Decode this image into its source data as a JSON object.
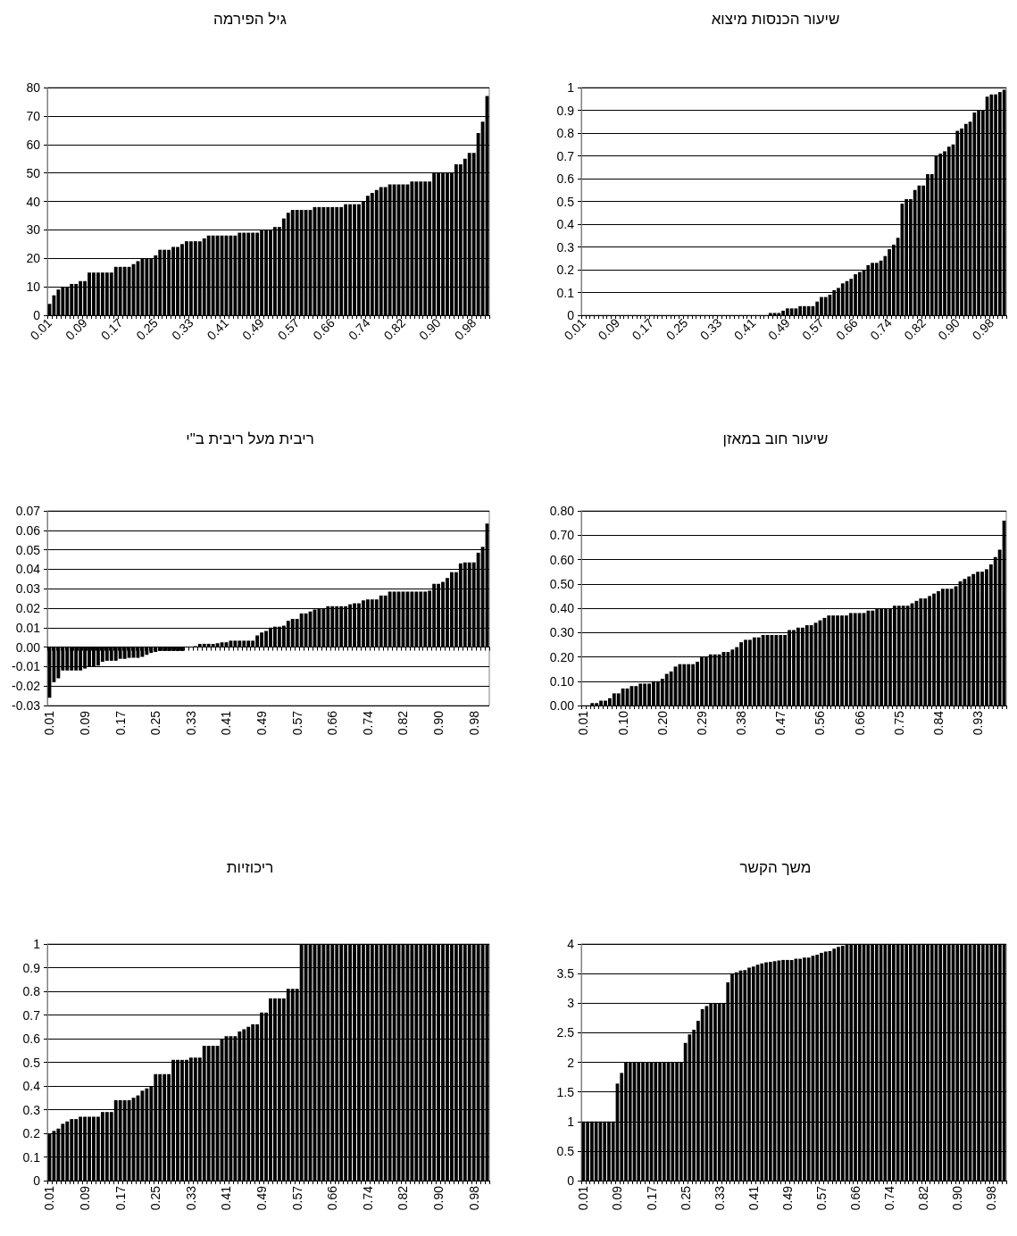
{
  "chart_data": [
    {
      "type": "bar",
      "title": "גיל הפירמה",
      "color": "#000000",
      "grid": "y",
      "ylim": [
        0,
        80
      ],
      "yticks": [
        0,
        10,
        20,
        30,
        40,
        50,
        60,
        70,
        80
      ],
      "categories": [
        "0.01",
        null,
        null,
        null,
        null,
        null,
        null,
        null,
        "0.09",
        null,
        null,
        null,
        null,
        null,
        null,
        null,
        "0.17",
        null,
        null,
        null,
        null,
        null,
        null,
        null,
        "0.25",
        null,
        null,
        null,
        null,
        null,
        null,
        null,
        "0.33",
        null,
        null,
        null,
        null,
        null,
        null,
        null,
        "0.41",
        null,
        null,
        null,
        null,
        null,
        null,
        null,
        "0.49",
        null,
        null,
        null,
        null,
        null,
        null,
        null,
        "0.57",
        null,
        null,
        null,
        null,
        null,
        null,
        null,
        "0.66",
        null,
        null,
        null,
        null,
        null,
        null,
        null,
        "0.74",
        null,
        null,
        null,
        null,
        null,
        null,
        null,
        "0.82",
        null,
        null,
        null,
        null,
        null,
        null,
        null,
        "0.90",
        null,
        null,
        null,
        null,
        null,
        null,
        null,
        "0.98",
        null,
        null,
        null
      ],
      "values": [
        4,
        7,
        9,
        10,
        10,
        11,
        11,
        12,
        12,
        15,
        15,
        15,
        15,
        15,
        15,
        17,
        17,
        17,
        17,
        18,
        19,
        20,
        20,
        20,
        21,
        23,
        23,
        23,
        24,
        24,
        25,
        26,
        26,
        26,
        26,
        27,
        28,
        28,
        28,
        28,
        28,
        28,
        28,
        29,
        29,
        29,
        29,
        29,
        30,
        30,
        30,
        31,
        31,
        34,
        36,
        37,
        37,
        37,
        37,
        37,
        38,
        38,
        38,
        38,
        38,
        38,
        38,
        39,
        39,
        39,
        39,
        40,
        42,
        43,
        44,
        45,
        45,
        46,
        46,
        46,
        46,
        46,
        47,
        47,
        47,
        47,
        47,
        50,
        50,
        50,
        50,
        50,
        53,
        53,
        55,
        57,
        57,
        64,
        68,
        77
      ]
    },
    {
      "type": "bar",
      "title": "שיעור הכנסות מיצוא",
      "color": "#000000",
      "grid": "y",
      "ylim": [
        0,
        1
      ],
      "yticks": [
        0,
        0.1,
        0.2,
        0.3,
        0.4,
        0.5,
        0.6,
        0.7,
        0.8,
        0.9,
        1
      ],
      "categories": [
        "0.01",
        null,
        null,
        null,
        null,
        null,
        null,
        null,
        "0.09",
        null,
        null,
        null,
        null,
        null,
        null,
        null,
        "0.17",
        null,
        null,
        null,
        null,
        null,
        null,
        null,
        "0.25",
        null,
        null,
        null,
        null,
        null,
        null,
        null,
        "0.33",
        null,
        null,
        null,
        null,
        null,
        null,
        null,
        "0.41",
        null,
        null,
        null,
        null,
        null,
        null,
        null,
        "0.49",
        null,
        null,
        null,
        null,
        null,
        null,
        null,
        "0.57",
        null,
        null,
        null,
        null,
        null,
        null,
        null,
        "0.66",
        null,
        null,
        null,
        null,
        null,
        null,
        null,
        "0.74",
        null,
        null,
        null,
        null,
        null,
        null,
        null,
        "0.82",
        null,
        null,
        null,
        null,
        null,
        null,
        null,
        "0.90",
        null,
        null,
        null,
        null,
        null,
        null,
        null,
        "0.98",
        null,
        null,
        null
      ],
      "values": [
        0,
        0,
        0,
        0,
        0,
        0,
        0,
        0,
        0,
        0,
        0,
        0,
        0,
        0,
        0,
        0,
        0,
        0,
        0,
        0,
        0,
        0,
        0,
        0,
        0,
        0,
        0,
        0,
        0,
        0,
        0,
        0,
        0,
        0,
        0,
        0,
        0,
        0,
        0,
        0,
        0,
        0,
        0,
        0,
        0.01,
        0.01,
        0.01,
        0.02,
        0.03,
        0.03,
        0.03,
        0.04,
        0.04,
        0.04,
        0.04,
        0.06,
        0.08,
        0.08,
        0.09,
        0.11,
        0.12,
        0.14,
        0.15,
        0.16,
        0.18,
        0.19,
        0.2,
        0.22,
        0.23,
        0.23,
        0.24,
        0.26,
        0.29,
        0.31,
        0.34,
        0.49,
        0.51,
        0.51,
        0.55,
        0.57,
        0.57,
        0.62,
        0.62,
        0.7,
        0.71,
        0.72,
        0.74,
        0.75,
        0.81,
        0.82,
        0.84,
        0.85,
        0.89,
        0.9,
        0.9,
        0.96,
        0.97,
        0.97,
        0.98,
        0.99
      ]
    },
    {
      "type": "bar",
      "title": "ריבית מעל ריבית ב\"י",
      "color": "#000000",
      "grid": "y",
      "ylim": [
        -0.03,
        0.07
      ],
      "yticks": [
        {
          "value": -0.03,
          "label": "-0.03"
        },
        {
          "value": -0.02,
          "label": "-0.02"
        },
        {
          "value": -0.01,
          "label": "-0.01"
        },
        {
          "value": 0,
          "label": "0.00"
        },
        {
          "value": 0.01,
          "label": "0.01"
        },
        {
          "value": 0.02,
          "label": "0.02"
        },
        {
          "value": 0.03,
          "label": "0.03"
        },
        {
          "value": 0.04,
          "label": "0.04"
        },
        {
          "value": 0.05,
          "label": "0.05"
        },
        {
          "value": 0.06,
          "label": "0.06"
        },
        {
          "value": 0.07,
          "label": "0.07"
        }
      ],
      "categories": [
        "0.01",
        null,
        null,
        null,
        null,
        null,
        null,
        null,
        "0.09",
        null,
        null,
        null,
        null,
        null,
        null,
        null,
        "0.17",
        null,
        null,
        null,
        null,
        null,
        null,
        null,
        "0.25",
        null,
        null,
        null,
        null,
        null,
        null,
        null,
        "0.33",
        null,
        null,
        null,
        null,
        null,
        null,
        null,
        "0.41",
        null,
        null,
        null,
        null,
        null,
        null,
        null,
        "0.49",
        null,
        null,
        null,
        null,
        null,
        null,
        null,
        "0.57",
        null,
        null,
        null,
        null,
        null,
        null,
        null,
        "0.66",
        null,
        null,
        null,
        null,
        null,
        null,
        null,
        "0.74",
        null,
        null,
        null,
        null,
        null,
        null,
        null,
        "0.82",
        null,
        null,
        null,
        null,
        null,
        null,
        null,
        "0.90",
        null,
        null,
        null,
        null,
        null,
        null,
        null,
        "0.98",
        null,
        null,
        null
      ],
      "values": [
        -0.026,
        -0.018,
        -0.016,
        -0.012,
        -0.012,
        -0.012,
        -0.012,
        -0.012,
        -0.011,
        -0.01,
        -0.01,
        -0.0095,
        -0.0075,
        -0.007,
        -0.007,
        -0.007,
        -0.006,
        -0.006,
        -0.0055,
        -0.0055,
        -0.0055,
        -0.005,
        -0.004,
        -0.003,
        -0.0025,
        -0.002,
        -0.002,
        -0.002,
        -0.002,
        -0.002,
        -0.002,
        0,
        0,
        0.0005,
        0.0017,
        0.0017,
        0.0017,
        0.0017,
        0.002,
        0.0025,
        0.0025,
        0.0033,
        0.0033,
        0.0033,
        0.0033,
        0.0033,
        0.0033,
        0.006,
        0.0075,
        0.0083,
        0.01,
        0.0105,
        0.0105,
        0.011,
        0.0135,
        0.0145,
        0.0145,
        0.0173,
        0.0173,
        0.0183,
        0.0193,
        0.02,
        0.02,
        0.021,
        0.021,
        0.021,
        0.021,
        0.021,
        0.022,
        0.0225,
        0.0225,
        0.024,
        0.0245,
        0.0245,
        0.0245,
        0.0265,
        0.0265,
        0.0285,
        0.0285,
        0.0285,
        0.0285,
        0.0285,
        0.0285,
        0.0285,
        0.0285,
        0.0285,
        0.029,
        0.0325,
        0.0325,
        0.0335,
        0.0355,
        0.0385,
        0.0385,
        0.043,
        0.0435,
        0.0435,
        0.0435,
        0.0485,
        0.0515,
        0.0635
      ]
    },
    {
      "type": "bar",
      "title": "שיעור חוב במאזן",
      "color": "#000000",
      "grid": "y",
      "ylim": [
        0,
        0.8
      ],
      "yticks": [
        {
          "value": 0,
          "label": "0.00"
        },
        {
          "value": 0.1,
          "label": "0.10"
        },
        {
          "value": 0.2,
          "label": "0.20"
        },
        {
          "value": 0.3,
          "label": "0.30"
        },
        {
          "value": 0.4,
          "label": "0.40"
        },
        {
          "value": 0.5,
          "label": "0.50"
        },
        {
          "value": 0.6,
          "label": "0.60"
        },
        {
          "value": 0.7,
          "label": "0.70"
        },
        {
          "value": 0.8,
          "label": "0.80"
        }
      ],
      "categories": [
        "0.01",
        null,
        null,
        null,
        null,
        null,
        null,
        null,
        null,
        "0.10",
        null,
        null,
        null,
        null,
        null,
        null,
        null,
        null,
        "0.20",
        null,
        null,
        null,
        null,
        null,
        null,
        null,
        null,
        "0.29",
        null,
        null,
        null,
        null,
        null,
        null,
        null,
        null,
        "0.38",
        null,
        null,
        null,
        null,
        null,
        null,
        null,
        null,
        "0.47",
        null,
        null,
        null,
        null,
        null,
        null,
        null,
        null,
        "0.56",
        null,
        null,
        null,
        null,
        null,
        null,
        null,
        null,
        "0.66",
        null,
        null,
        null,
        null,
        null,
        null,
        null,
        null,
        "0.75",
        null,
        null,
        null,
        null,
        null,
        null,
        null,
        null,
        "0.84",
        null,
        null,
        null,
        null,
        null,
        null,
        null,
        null,
        "0.93",
        null,
        null,
        null,
        null,
        null,
        null
      ],
      "values": [
        0,
        0,
        0.01,
        0.01,
        0.02,
        0.02,
        0.03,
        0.05,
        0.05,
        0.07,
        0.07,
        0.08,
        0.08,
        0.09,
        0.09,
        0.09,
        0.1,
        0.1,
        0.11,
        0.13,
        0.14,
        0.16,
        0.17,
        0.17,
        0.17,
        0.17,
        0.18,
        0.2,
        0.2,
        0.21,
        0.21,
        0.21,
        0.22,
        0.22,
        0.23,
        0.24,
        0.26,
        0.27,
        0.27,
        0.28,
        0.28,
        0.29,
        0.29,
        0.29,
        0.29,
        0.29,
        0.29,
        0.31,
        0.31,
        0.32,
        0.32,
        0.33,
        0.33,
        0.34,
        0.35,
        0.36,
        0.37,
        0.37,
        0.37,
        0.37,
        0.37,
        0.38,
        0.38,
        0.38,
        0.38,
        0.39,
        0.39,
        0.4,
        0.4,
        0.4,
        0.4,
        0.41,
        0.41,
        0.41,
        0.41,
        0.42,
        0.43,
        0.44,
        0.44,
        0.45,
        0.46,
        0.47,
        0.48,
        0.48,
        0.48,
        0.49,
        0.51,
        0.52,
        0.53,
        0.54,
        0.55,
        0.55,
        0.56,
        0.58,
        0.61,
        0.64,
        0.76
      ]
    },
    {
      "type": "bar",
      "title": "ריכוזיות",
      "color": "#000000",
      "grid": "y",
      "ylim": [
        0,
        1
      ],
      "yticks": [
        0,
        0.1,
        0.2,
        0.3,
        0.4,
        0.5,
        0.6,
        0.7,
        0.8,
        0.9,
        1
      ],
      "categories": [
        "0.01",
        null,
        null,
        null,
        null,
        null,
        null,
        null,
        "0.09",
        null,
        null,
        null,
        null,
        null,
        null,
        null,
        "0.17",
        null,
        null,
        null,
        null,
        null,
        null,
        null,
        "0.25",
        null,
        null,
        null,
        null,
        null,
        null,
        null,
        "0.33",
        null,
        null,
        null,
        null,
        null,
        null,
        null,
        "0.41",
        null,
        null,
        null,
        null,
        null,
        null,
        null,
        "0.49",
        null,
        null,
        null,
        null,
        null,
        null,
        null,
        "0.57",
        null,
        null,
        null,
        null,
        null,
        null,
        null,
        "0.66",
        null,
        null,
        null,
        null,
        null,
        null,
        null,
        "0.74",
        null,
        null,
        null,
        null,
        null,
        null,
        null,
        "0.82",
        null,
        null,
        null,
        null,
        null,
        null,
        null,
        "0.90",
        null,
        null,
        null,
        null,
        null,
        null,
        null,
        "0.98",
        null,
        null,
        null
      ],
      "values": [
        0.2,
        0.21,
        0.22,
        0.24,
        0.25,
        0.26,
        0.26,
        0.27,
        0.27,
        0.27,
        0.27,
        0.27,
        0.29,
        0.29,
        0.29,
        0.34,
        0.34,
        0.34,
        0.34,
        0.35,
        0.36,
        0.38,
        0.39,
        0.4,
        0.45,
        0.45,
        0.45,
        0.45,
        0.51,
        0.51,
        0.51,
        0.51,
        0.52,
        0.52,
        0.52,
        0.57,
        0.57,
        0.57,
        0.57,
        0.6,
        0.61,
        0.61,
        0.61,
        0.63,
        0.64,
        0.65,
        0.66,
        0.66,
        0.71,
        0.71,
        0.77,
        0.77,
        0.77,
        0.77,
        0.81,
        0.81,
        0.81,
        1,
        1,
        1,
        1,
        1,
        1,
        1,
        1,
        1,
        1,
        1,
        1,
        1,
        1,
        1,
        1,
        1,
        1,
        1,
        1,
        1,
        1,
        1,
        1,
        1,
        1,
        1,
        1,
        1,
        1,
        1,
        1,
        1,
        1,
        1,
        1,
        1,
        1,
        1,
        1,
        1,
        1,
        1
      ]
    },
    {
      "type": "bar",
      "title": "משך הקשר",
      "color": "#000000",
      "grid": "y",
      "ylim": [
        0,
        4
      ],
      "yticks": [
        0,
        0.5,
        1,
        1.5,
        2,
        2.5,
        3,
        3.5,
        4
      ],
      "categories": [
        "0.01",
        null,
        null,
        null,
        null,
        null,
        null,
        null,
        "0.09",
        null,
        null,
        null,
        null,
        null,
        null,
        null,
        "0.17",
        null,
        null,
        null,
        null,
        null,
        null,
        null,
        "0.25",
        null,
        null,
        null,
        null,
        null,
        null,
        null,
        "0.33",
        null,
        null,
        null,
        null,
        null,
        null,
        null,
        "0.41",
        null,
        null,
        null,
        null,
        null,
        null,
        null,
        "0.49",
        null,
        null,
        null,
        null,
        null,
        null,
        null,
        "0.57",
        null,
        null,
        null,
        null,
        null,
        null,
        null,
        "0.66",
        null,
        null,
        null,
        null,
        null,
        null,
        null,
        "0.74",
        null,
        null,
        null,
        null,
        null,
        null,
        null,
        "0.82",
        null,
        null,
        null,
        null,
        null,
        null,
        null,
        "0.90",
        null,
        null,
        null,
        null,
        null,
        null,
        null,
        "0.98",
        null,
        null,
        null
      ],
      "values": [
        1,
        1,
        1,
        1,
        1,
        1,
        1,
        1,
        1.64,
        1.82,
        2,
        2,
        2,
        2,
        2,
        2,
        2,
        2,
        2,
        2,
        2,
        2,
        2,
        2,
        2.33,
        2.47,
        2.55,
        2.7,
        2.9,
        2.95,
        3,
        3,
        3,
        3,
        3.35,
        3.5,
        3.52,
        3.55,
        3.56,
        3.6,
        3.62,
        3.65,
        3.67,
        3.69,
        3.7,
        3.71,
        3.72,
        3.73,
        3.73,
        3.73,
        3.75,
        3.75,
        3.77,
        3.77,
        3.8,
        3.82,
        3.85,
        3.87,
        3.88,
        3.92,
        3.95,
        3.97,
        3.99,
        4,
        4,
        4,
        4,
        4,
        4,
        4,
        4,
        4,
        4,
        4,
        4,
        4,
        4,
        4,
        4,
        4,
        4,
        4,
        4,
        4,
        4,
        4,
        4,
        4,
        4,
        4,
        4,
        4,
        4,
        4,
        4,
        4,
        4,
        4,
        4,
        4
      ]
    }
  ]
}
